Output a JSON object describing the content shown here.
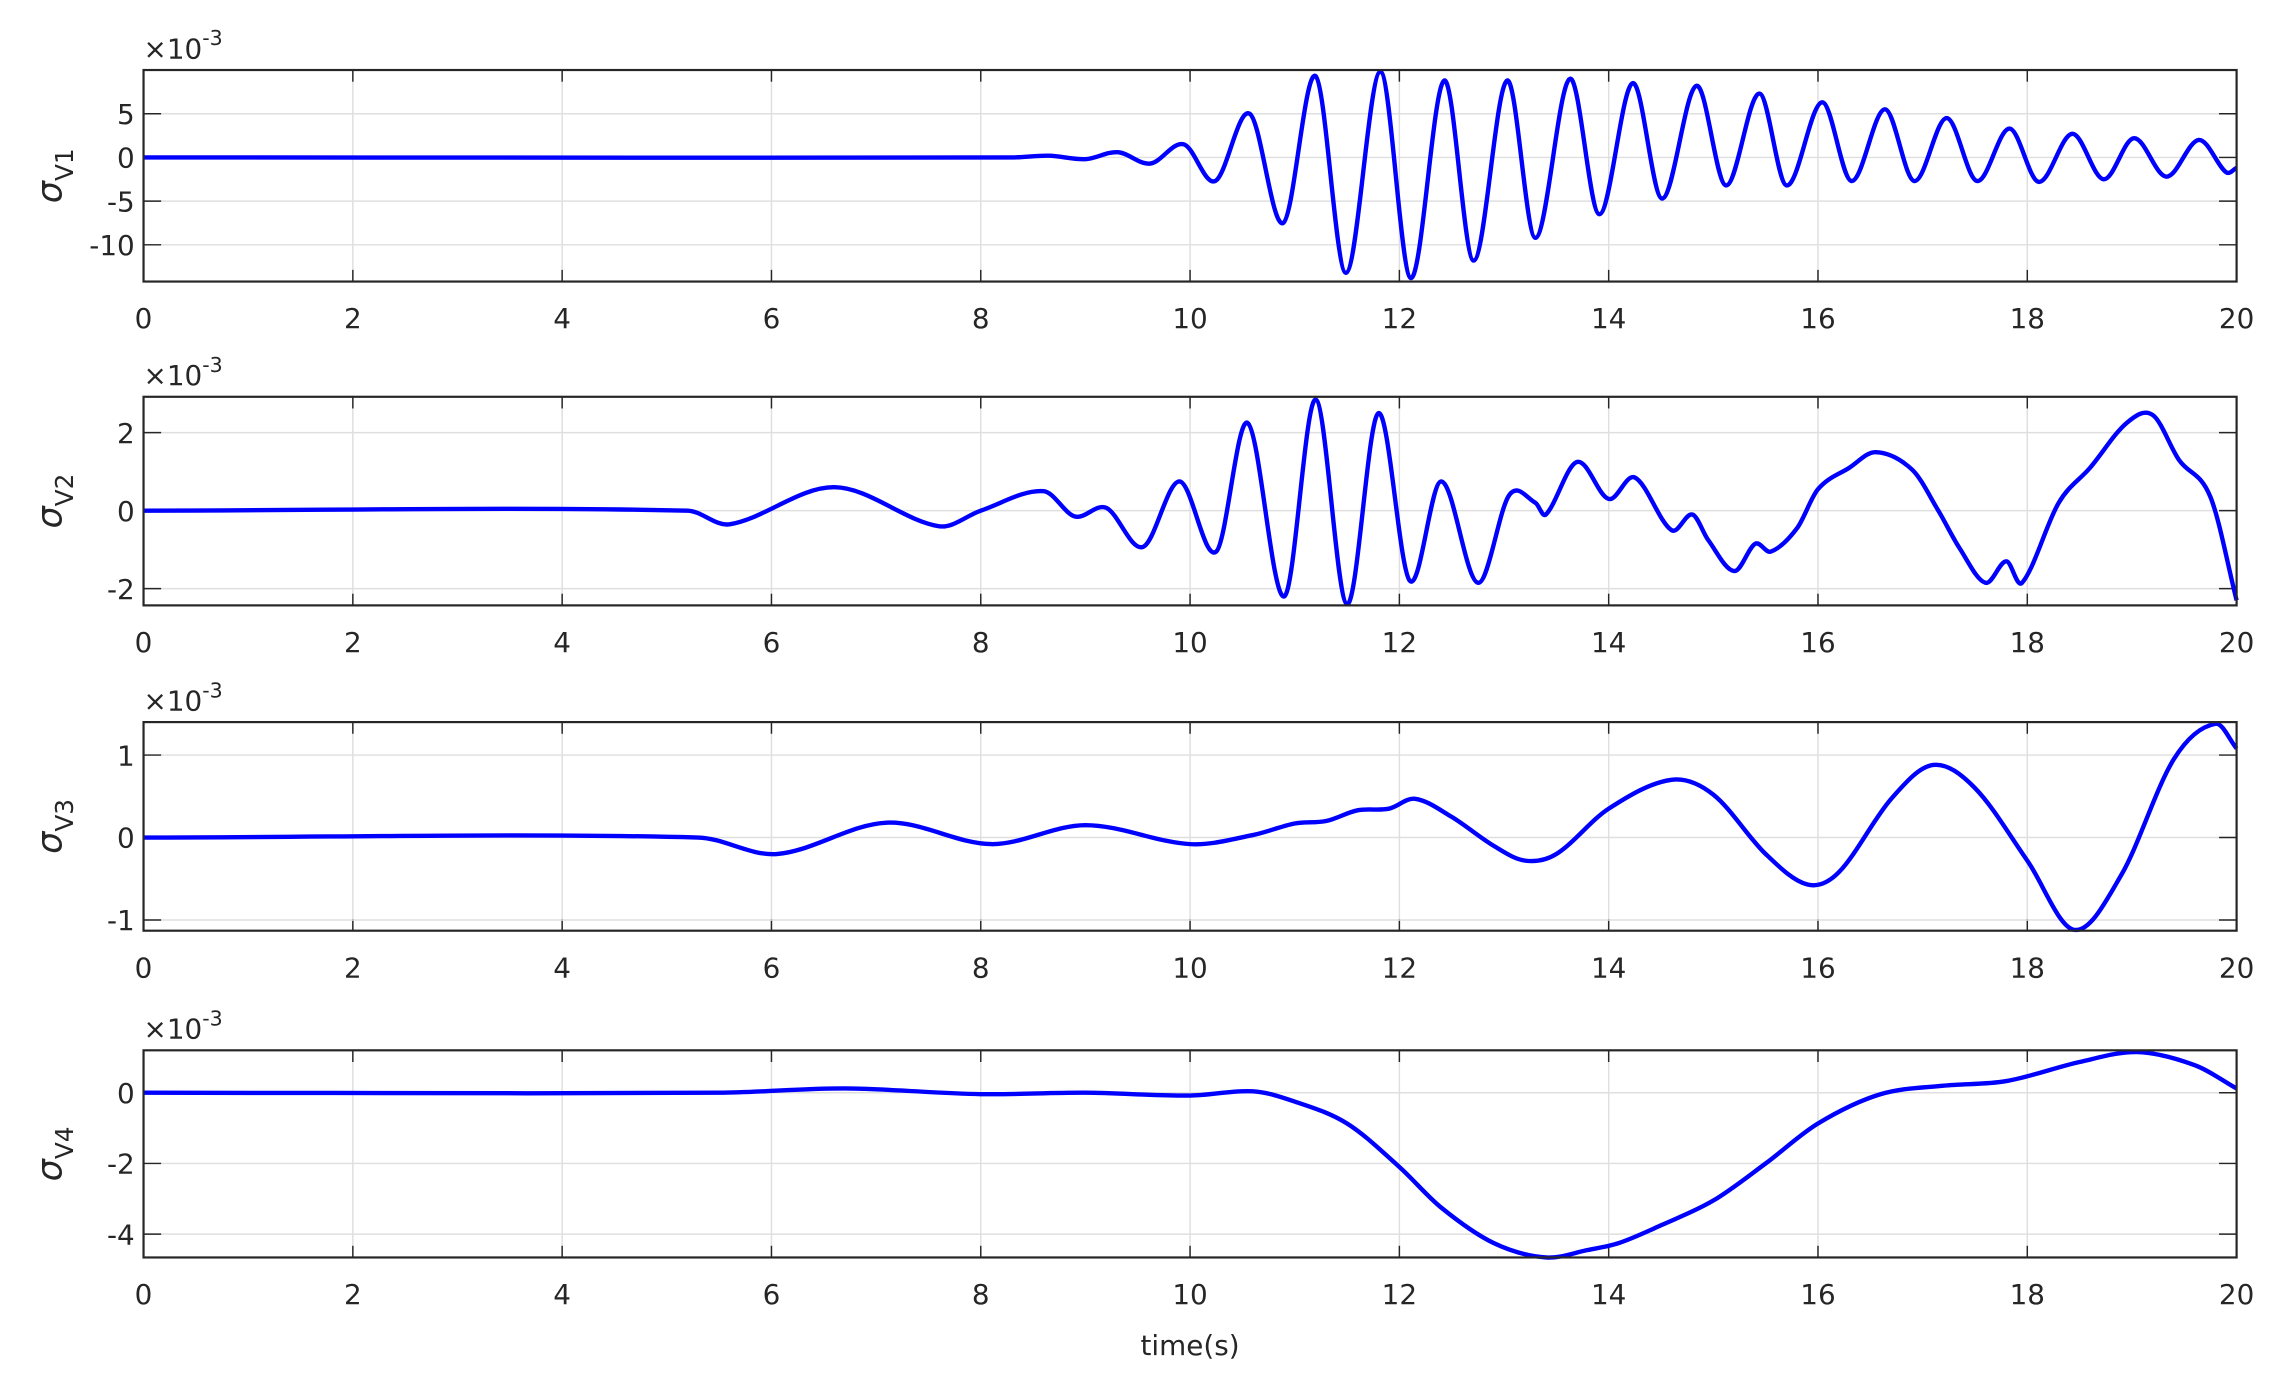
{
  "chart_data": [
    {
      "type": "line",
      "ylabel": "σ",
      "ylabel_subscript": "V1",
      "y_multiplier": "×10",
      "y_exponent": "-3",
      "x": [
        0,
        8.3,
        8.65,
        9.0,
        9.31,
        9.62,
        9.94,
        10.24,
        10.57,
        10.89,
        11.2,
        11.49,
        11.82,
        12.11,
        12.43,
        12.71,
        13.03,
        13.3,
        13.63,
        13.91,
        14.23,
        14.51,
        14.84,
        15.12,
        15.44,
        15.7,
        16.04,
        16.32,
        16.64,
        16.92,
        17.23,
        17.52,
        17.83,
        18.11,
        18.43,
        18.73,
        19.02,
        19.33,
        19.64,
        19.9,
        20
      ],
      "series": [
        {
          "color": "#0000ff",
          "values": [
            0,
            0,
            0.2,
            -0.2,
            0.6,
            -0.7,
            1.5,
            -2.7,
            5,
            -7.5,
            9.3,
            -13.2,
            9.8,
            -13.8,
            8.8,
            -11.8,
            8.8,
            -9.2,
            9,
            -6.5,
            8.5,
            -4.7,
            8.2,
            -3.2,
            7.3,
            -3.2,
            6.3,
            -2.7,
            5.5,
            -2.7,
            4.5,
            -2.7,
            3.3,
            -2.8,
            2.7,
            -2.5,
            2.2,
            -2.2,
            2,
            -1.7,
            -1.2
          ]
        }
      ],
      "xlim": [
        0,
        20
      ],
      "xticks": [
        0,
        2,
        4,
        6,
        8,
        10,
        12,
        14,
        16,
        18,
        20
      ],
      "ylim": [
        -14.2,
        10
      ],
      "yticks": [
        -10,
        -5,
        0,
        5
      ],
      "grid": true
    },
    {
      "type": "line",
      "ylabel": "σ",
      "ylabel_subscript": "V2",
      "y_multiplier": "×10",
      "y_exponent": "-3",
      "x": [
        0,
        5.2,
        5.6,
        6.6,
        7.6,
        8.0,
        8.6,
        8.9,
        9.2,
        9.55,
        9.9,
        10.25,
        10.55,
        10.9,
        11.2,
        11.5,
        11.8,
        12.1,
        12.4,
        12.75,
        13.05,
        13.3,
        13.4,
        13.7,
        14.0,
        14.25,
        14.6,
        14.8,
        14.95,
        15.2,
        15.4,
        15.55,
        15.8,
        16.0,
        16.3,
        16.55,
        16.9,
        17.15,
        17.35,
        17.6,
        17.8,
        17.95,
        18.3,
        18.6,
        18.95,
        19.2,
        19.45,
        19.75,
        20
      ],
      "series": [
        {
          "color": "#0000ff",
          "values": [
            0,
            0,
            -0.35,
            0.6,
            -0.4,
            0,
            0.5,
            -0.15,
            0.07,
            -0.93,
            0.75,
            -1.05,
            2.25,
            -2.2,
            2.85,
            -2.4,
            2.5,
            -1.8,
            0.75,
            -1.85,
            0.4,
            0.2,
            -0.1,
            1.25,
            0.3,
            0.85,
            -0.5,
            -0.1,
            -0.75,
            -1.55,
            -0.85,
            -1.05,
            -0.45,
            0.55,
            1.1,
            1.5,
            1.05,
            0,
            -0.95,
            -1.85,
            -1.3,
            -1.85,
            0.2,
            1.1,
            2.25,
            2.45,
            1.3,
            0.35,
            -2.3
          ]
        }
      ],
      "xlim": [
        0,
        20
      ],
      "xticks": [
        0,
        2,
        4,
        6,
        8,
        10,
        12,
        14,
        16,
        18,
        20
      ],
      "ylim": [
        -2.43,
        2.92
      ],
      "yticks": [
        -2,
        0,
        2
      ],
      "grid": true
    },
    {
      "type": "line",
      "ylabel": "σ",
      "ylabel_subscript": "V3",
      "y_multiplier": "×10",
      "y_exponent": "-3",
      "x": [
        0,
        5.3,
        6.05,
        7.1,
        8.1,
        9.0,
        10.0,
        10.6,
        11.0,
        11.3,
        11.6,
        11.9,
        12.15,
        12.5,
        12.9,
        13.2,
        13.5,
        14.0,
        14.6,
        15.0,
        15.5,
        15.9,
        16.2,
        16.7,
        17.1,
        17.5,
        18.0,
        18.45,
        18.9,
        19.4,
        19.8,
        20
      ],
      "series": [
        {
          "color": "#0000ff",
          "values": [
            0,
            0,
            -0.2,
            0.18,
            -0.08,
            0.15,
            -0.08,
            0.03,
            0.17,
            0.2,
            0.33,
            0.35,
            0.47,
            0.25,
            -0.1,
            -0.28,
            -0.2,
            0.35,
            0.7,
            0.52,
            -0.2,
            -0.57,
            -0.42,
            0.47,
            0.88,
            0.6,
            -0.28,
            -1.12,
            -0.45,
            0.95,
            1.38,
            1.08
          ]
        }
      ],
      "xlim": [
        0,
        20
      ],
      "xticks": [
        0,
        2,
        4,
        6,
        8,
        10,
        12,
        14,
        16,
        18,
        20
      ],
      "ylim": [
        -1.13,
        1.4
      ],
      "yticks": [
        -1,
        0,
        1
      ],
      "grid": true
    },
    {
      "type": "line",
      "ylabel": "σ",
      "ylabel_subscript": "V4",
      "y_multiplier": "×10",
      "y_exponent": "-3",
      "xlabel": "time(s)",
      "x": [
        0,
        5.5,
        6.7,
        8.0,
        9.0,
        10.0,
        10.6,
        11.0,
        11.5,
        12.0,
        12.4,
        12.9,
        13.4,
        13.8,
        14.1,
        14.5,
        15.0,
        15.5,
        16.0,
        16.6,
        17.2,
        17.8,
        18.5,
        19.05,
        19.6,
        20
      ],
      "series": [
        {
          "color": "#0000ff",
          "values": [
            0,
            0,
            0.12,
            -0.04,
            0,
            -0.08,
            0.04,
            -0.25,
            -0.87,
            -2.1,
            -3.25,
            -4.25,
            -4.66,
            -4.45,
            -4.25,
            -3.75,
            -3.05,
            -2.0,
            -0.87,
            -0.04,
            0.2,
            0.33,
            0.87,
            1.15,
            0.78,
            0.12
          ]
        }
      ],
      "xlim": [
        0,
        20
      ],
      "xticks": [
        0,
        2,
        4,
        6,
        8,
        10,
        12,
        14,
        16,
        18,
        20
      ],
      "ylim": [
        -4.66,
        1.2
      ],
      "yticks": [
        -4,
        -2,
        0
      ],
      "grid": true
    }
  ]
}
